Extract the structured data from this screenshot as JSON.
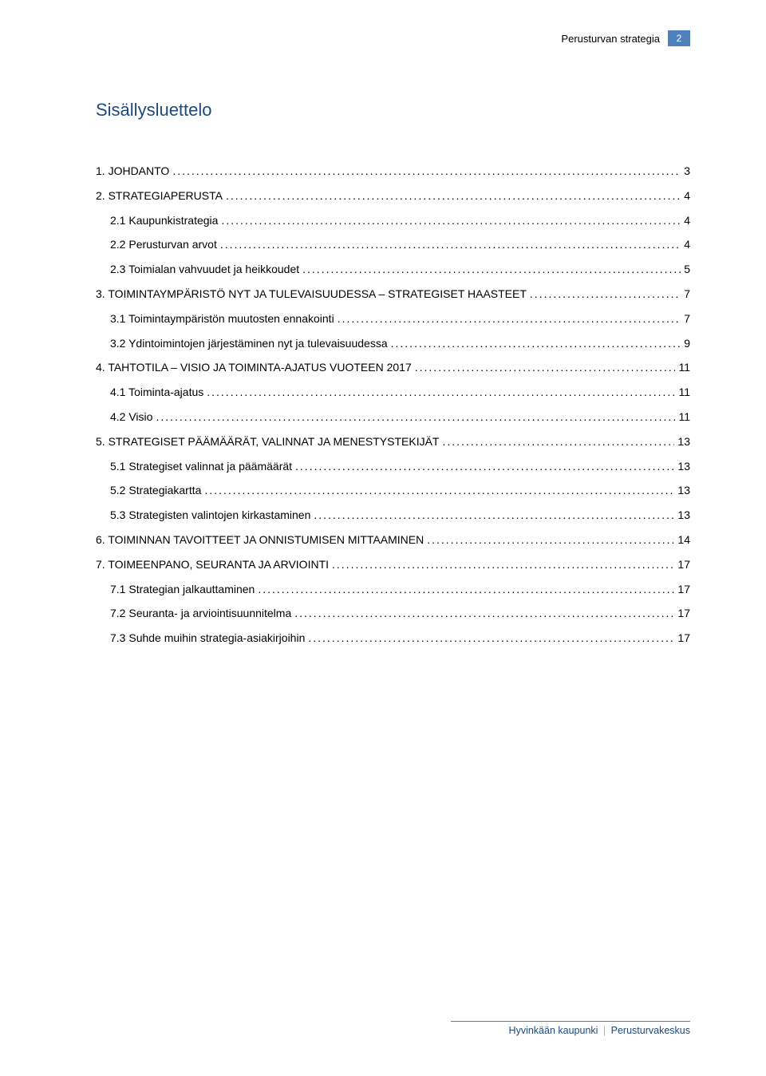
{
  "colors": {
    "title": "#1f497d",
    "badge_bg": "#4f81bd",
    "badge_fg": "#ffffff",
    "text": "#000000",
    "footer": "#1f497d",
    "footer_rule": "#4f81bd",
    "sep": "#9fb9db",
    "background": "#ffffff"
  },
  "header": {
    "label": "Perusturvan strategia",
    "page_number": "2"
  },
  "title": "Sisällysluettelo",
  "toc": [
    {
      "level": 0,
      "label": "1. JOHDANTO",
      "page": "3"
    },
    {
      "level": 0,
      "label": "2. STRATEGIAPERUSTA",
      "page": "4"
    },
    {
      "level": 1,
      "label": "2.1 Kaupunkistrategia",
      "page": "4"
    },
    {
      "level": 1,
      "label": "2.2 Perusturvan arvot",
      "page": "4"
    },
    {
      "level": 1,
      "label": "2.3 Toimialan vahvuudet ja heikkoudet",
      "page": "5"
    },
    {
      "level": 0,
      "label": "3. TOIMINTAYMPÄRISTÖ NYT JA TULEVAISUUDESSA – STRATEGISET HAASTEET",
      "page": "7"
    },
    {
      "level": 1,
      "label": "3.1 Toimintaympäristön muutosten ennakointi",
      "page": "7"
    },
    {
      "level": 1,
      "label": "3.2 Ydintoimintojen järjestäminen nyt ja tulevaisuudessa",
      "page": "9"
    },
    {
      "level": 0,
      "label": "4. TAHTOTILA – VISIO JA TOIMINTA-AJATUS VUOTEEN 2017",
      "page": "11"
    },
    {
      "level": 1,
      "label": "4.1 Toiminta-ajatus",
      "page": "11"
    },
    {
      "level": 1,
      "label": "4.2 Visio",
      "page": "11"
    },
    {
      "level": 0,
      "label": "5. STRATEGISET PÄÄMÄÄRÄT, VALINNAT JA MENESTYSTEKIJÄT",
      "page": "13"
    },
    {
      "level": 1,
      "label": "5.1 Strategiset valinnat ja päämäärät",
      "page": "13"
    },
    {
      "level": 1,
      "label": "5.2 Strategiakartta",
      "page": "13"
    },
    {
      "level": 1,
      "label": "5.3 Strategisten valintojen kirkastaminen",
      "page": "13"
    },
    {
      "level": 0,
      "label": "6. TOIMINNAN TAVOITTEET JA ONNISTUMISEN MITTAAMINEN",
      "page": "14"
    },
    {
      "level": 0,
      "label": "7. TOIMEENPANO, SEURANTA JA ARVIOINTI",
      "page": "17"
    },
    {
      "level": 1,
      "label": "7.1 Strategian jalkauttaminen",
      "page": "17"
    },
    {
      "level": 1,
      "label": "7.2 Seuranta- ja arviointisuunnitelma",
      "page": "17"
    },
    {
      "level": 1,
      "label": "7.3 Suhde muihin strategia-asiakirjoihin",
      "page": "17"
    }
  ],
  "footer": {
    "left": "Hyvinkään kaupunki",
    "right": "Perusturvakeskus"
  }
}
